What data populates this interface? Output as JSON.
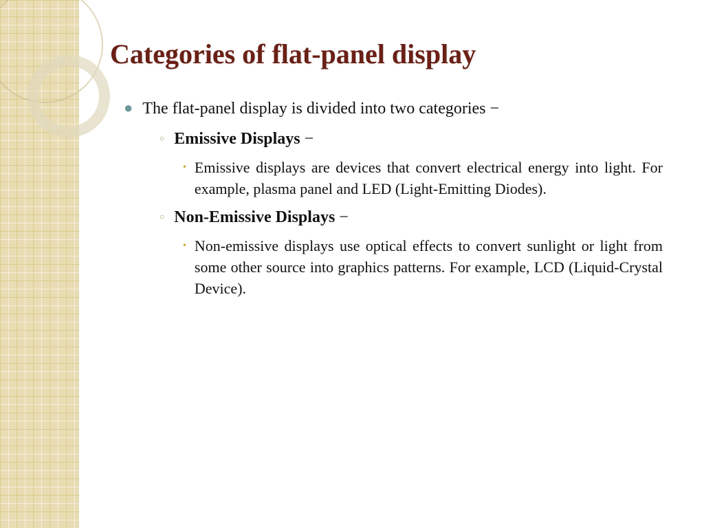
{
  "slide": {
    "title": "Categories of flat-panel display",
    "title_color": "#6a2016",
    "title_fontsize": 40,
    "body_color": "#111111",
    "body_fontsize_l1": 24,
    "body_fontsize_l3": 22,
    "bullet_color_l1": "#6b9999",
    "bullet_color_l2": "#a99a6e",
    "bullet_color_l3": "#d0a030",
    "sidebar_bg": "#e8dcb3",
    "sidebar_grid_strong": "#dccb8e",
    "sidebar_grid_weak": "#f5f0dc",
    "background": "#ffffff",
    "intro": "The flat-panel display is divided into two categories −",
    "cat1_label": "Emissive Displays",
    "cat1_suffix": " −",
    "cat1_desc": "Emissive displays are devices that convert electrical energy into light. For example, plasma panel and LED (Light-Emitting Diodes).",
    "cat2_label": "Non-Emissive Displays",
    "cat2_suffix": " −",
    "cat2_desc": "Non-emissive displays use optical effects to convert sunlight or light from some other source into graphics patterns. For example, LCD (Liquid-Crystal Device)."
  }
}
